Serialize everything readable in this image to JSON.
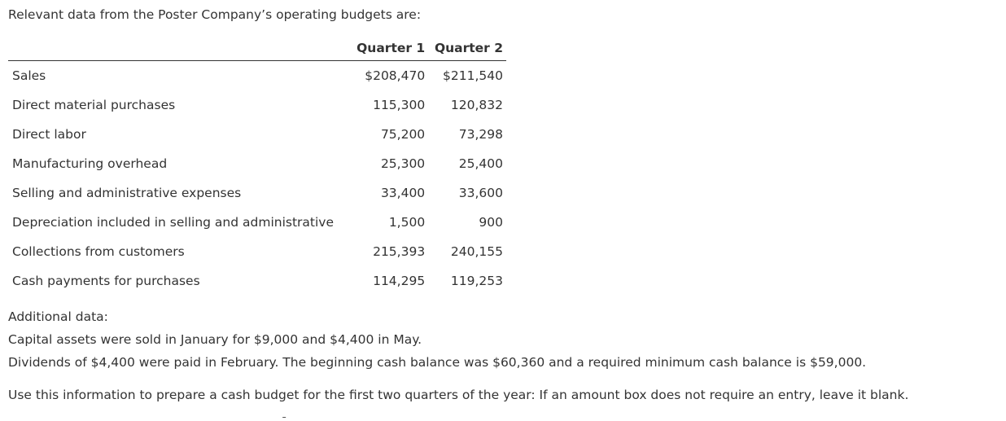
{
  "intro": "Relevant data from the Poster Company’s operating budgets are:",
  "table": {
    "headers": [
      "",
      "Quarter 1",
      "Quarter 2"
    ],
    "rows": [
      {
        "label": "Sales",
        "q1": "$208,470",
        "q2": "$211,540"
      },
      {
        "label": "Direct material purchases",
        "q1": "115,300",
        "q2": "120,832"
      },
      {
        "label": "Direct labor",
        "q1": "75,200",
        "q2": "73,298"
      },
      {
        "label": "Manufacturing overhead",
        "q1": "25,300",
        "q2": "25,400"
      },
      {
        "label": "Selling and administrative expenses",
        "q1": "33,400",
        "q2": "33,600"
      },
      {
        "label": "Depreciation included in selling and administrative",
        "q1": "1,500",
        "q2": "900"
      },
      {
        "label": "Collections from customers",
        "q1": "215,393",
        "q2": "240,155"
      },
      {
        "label": "Cash payments for purchases",
        "q1": "114,295",
        "q2": "119,253"
      }
    ]
  },
  "additional": {
    "heading": "Additional data:",
    "line1": "Capital assets were sold in January for $9,000 and $4,400 in May.",
    "line2": "Dividends of $4,400 were paid in February. The beginning cash balance was $60,360 and a required minimum cash balance is $59,000."
  },
  "instruction": "Use this information to prepare a cash budget for the first two quarters of the year: If an amount box does not require an entry, leave it blank."
}
